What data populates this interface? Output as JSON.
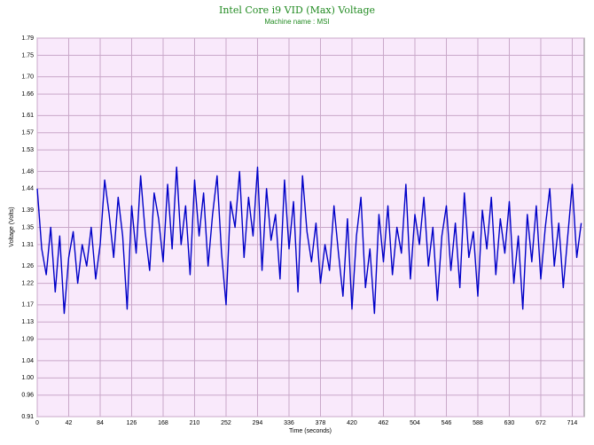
{
  "chart_data": {
    "type": "line",
    "title": "Intel Core i9 VID (Max) Voltage",
    "subtitle": "Machine name : MSI",
    "x_label": "Time (seconds)",
    "y_label": "Voltage (Volts)",
    "xlim": [
      0,
      730
    ],
    "ylim": [
      0.91,
      1.79
    ],
    "xticks": [
      0,
      42,
      84,
      126,
      168,
      210,
      252,
      294,
      336,
      378,
      420,
      462,
      504,
      546,
      588,
      630,
      672,
      714
    ],
    "yticks": [
      0.91,
      0.96,
      {
        "value": 1,
        "label": "1.00"
      },
      1.04,
      1.09,
      1.13,
      1.17,
      1.22,
      1.26,
      1.31,
      1.35,
      1.39,
      1.44,
      1.48,
      1.53,
      1.57,
      1.61,
      1.66,
      {
        "value": 1.7,
        "label": "1.70"
      },
      1.75,
      1.79
    ],
    "grid": true,
    "series": [
      {
        "color": "#0000c8",
        "x": [
          0,
          6,
          12,
          18,
          24,
          30,
          36,
          42,
          48,
          54,
          60,
          66,
          72,
          78,
          84,
          90,
          96,
          102,
          108,
          114,
          120,
          126,
          132,
          138,
          144,
          150,
          156,
          162,
          168,
          174,
          180,
          186,
          192,
          198,
          204,
          210,
          216,
          222,
          228,
          234,
          240,
          246,
          252,
          258,
          264,
          270,
          276,
          282,
          288,
          294,
          300,
          306,
          312,
          318,
          324,
          330,
          336,
          342,
          348,
          354,
          360,
          366,
          372,
          378,
          384,
          390,
          396,
          402,
          408,
          414,
          420,
          426,
          432,
          438,
          444,
          450,
          456,
          462,
          468,
          474,
          480,
          486,
          492,
          498,
          504,
          510,
          516,
          522,
          528,
          534,
          540,
          546,
          552,
          558,
          564,
          570,
          576,
          582,
          588,
          594,
          600,
          606,
          612,
          618,
          624,
          630,
          636,
          642,
          648,
          654,
          660,
          666,
          672,
          678,
          684,
          690,
          696,
          702,
          708,
          714,
          720,
          726
        ],
        "values": [
          1.44,
          1.3,
          1.24,
          1.35,
          1.2,
          1.33,
          1.15,
          1.28,
          1.34,
          1.22,
          1.31,
          1.26,
          1.35,
          1.23,
          1.31,
          1.46,
          1.38,
          1.28,
          1.42,
          1.33,
          1.16,
          1.4,
          1.29,
          1.47,
          1.34,
          1.25,
          1.43,
          1.37,
          1.27,
          1.45,
          1.3,
          1.49,
          1.31,
          1.4,
          1.24,
          1.46,
          1.33,
          1.43,
          1.26,
          1.38,
          1.47,
          1.29,
          1.17,
          1.41,
          1.35,
          1.48,
          1.28,
          1.42,
          1.33,
          1.49,
          1.25,
          1.44,
          1.32,
          1.38,
          1.23,
          1.46,
          1.3,
          1.41,
          1.2,
          1.47,
          1.34,
          1.27,
          1.36,
          1.22,
          1.31,
          1.25,
          1.4,
          1.29,
          1.19,
          1.37,
          1.16,
          1.33,
          1.42,
          1.21,
          1.3,
          1.15,
          1.38,
          1.27,
          1.4,
          1.24,
          1.35,
          1.29,
          1.45,
          1.23,
          1.38,
          1.31,
          1.42,
          1.26,
          1.35,
          1.18,
          1.33,
          1.4,
          1.25,
          1.36,
          1.21,
          1.43,
          1.28,
          1.34,
          1.19,
          1.39,
          1.3,
          1.42,
          1.24,
          1.37,
          1.29,
          1.41,
          1.22,
          1.33,
          1.16,
          1.38,
          1.27,
          1.4,
          1.23,
          1.35,
          1.44,
          1.26,
          1.36,
          1.21,
          1.33,
          1.45,
          1.28,
          1.36
        ]
      }
    ]
  }
}
